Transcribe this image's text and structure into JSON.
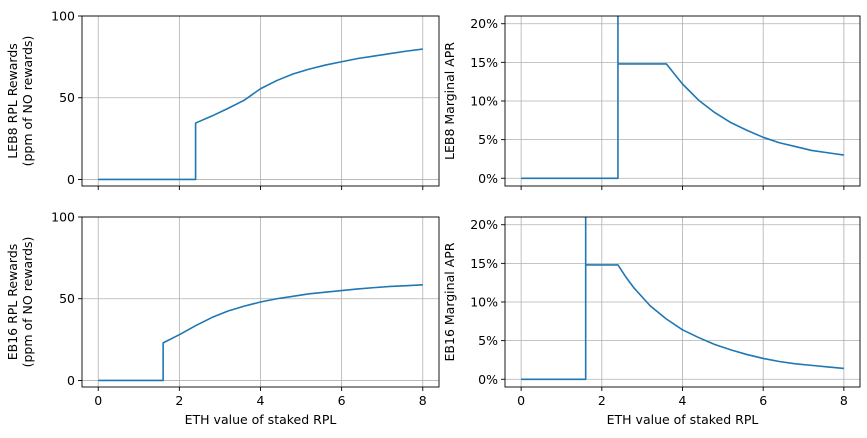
{
  "chart_data": [
    {
      "type": "line",
      "xlabel": "",
      "ylabel_lines": [
        "LEB8 RPL Rewards",
        "(ppm of NO rewards)"
      ],
      "xlim": [
        -0.4,
        8.4
      ],
      "ylim": [
        -4,
        100
      ],
      "xticks": [
        0,
        2,
        4,
        6,
        8
      ],
      "yticks": [
        0,
        50,
        100
      ],
      "show_xticklabels": false,
      "grid": true,
      "line_color": "#1f77b4",
      "x": [
        0,
        2.4,
        2.4,
        2.8,
        3.2,
        3.6,
        4.0,
        4.4,
        4.8,
        5.2,
        5.6,
        6.0,
        6.4,
        6.8,
        7.2,
        7.6,
        8.0
      ],
      "y": [
        0,
        0,
        34.5,
        38.8,
        43.5,
        48.5,
        55.5,
        60.5,
        64.5,
        67.5,
        70.0,
        72.0,
        74.0,
        75.5,
        77.0,
        78.5,
        79.8
      ]
    },
    {
      "type": "line",
      "xlabel": "",
      "ylabel_lines": [
        "LEB8 Marginal APR"
      ],
      "xlim": [
        -0.4,
        8.4
      ],
      "ylim": [
        -0.01,
        0.21
      ],
      "xticks": [
        0,
        2,
        4,
        6,
        8
      ],
      "yticks": [
        0,
        0.05,
        0.1,
        0.15,
        0.2
      ],
      "ytick_labels": [
        "0%",
        "5%",
        "10%",
        "15%",
        "20%"
      ],
      "show_xticklabels": false,
      "grid": true,
      "line_color": "#1f77b4",
      "x": [
        0,
        2.4,
        2.4,
        2.4,
        3.6,
        3.8,
        4.0,
        4.4,
        4.8,
        5.2,
        5.6,
        6.0,
        6.4,
        6.8,
        7.2,
        7.6,
        8.0
      ],
      "y": [
        0,
        0,
        0.25,
        0.148,
        0.148,
        0.135,
        0.122,
        0.101,
        0.085,
        0.072,
        0.062,
        0.053,
        0.046,
        0.041,
        0.036,
        0.033,
        0.03
      ]
    },
    {
      "type": "line",
      "xlabel": "ETH value of staked RPL",
      "ylabel_lines": [
        "EB16 RPL Rewards",
        "(ppm of NO rewards)"
      ],
      "xlim": [
        -0.4,
        8.4
      ],
      "ylim": [
        -4,
        100
      ],
      "xticks": [
        0,
        2,
        4,
        6,
        8
      ],
      "yticks": [
        0,
        50,
        100
      ],
      "show_xticklabels": true,
      "grid": true,
      "line_color": "#1f77b4",
      "x": [
        0,
        1.6,
        1.6,
        2.0,
        2.4,
        2.8,
        3.2,
        3.6,
        4.0,
        4.4,
        4.8,
        5.2,
        5.6,
        6.0,
        6.4,
        6.8,
        7.2,
        7.6,
        8.0
      ],
      "y": [
        0,
        0,
        23,
        28,
        33.5,
        38.5,
        42.5,
        45.5,
        48,
        50,
        51.5,
        53,
        54,
        55,
        56,
        56.8,
        57.5,
        58,
        58.5
      ]
    },
    {
      "type": "line",
      "xlabel": "ETH value of staked RPL",
      "ylabel_lines": [
        "EB16 Marginal APR"
      ],
      "xlim": [
        -0.4,
        8.4
      ],
      "ylim": [
        -0.01,
        0.21
      ],
      "xticks": [
        0,
        2,
        4,
        6,
        8
      ],
      "yticks": [
        0,
        0.05,
        0.1,
        0.15,
        0.2
      ],
      "ytick_labels": [
        "0%",
        "5%",
        "10%",
        "15%",
        "20%"
      ],
      "show_xticklabels": true,
      "grid": true,
      "line_color": "#1f77b4",
      "x": [
        0,
        1.6,
        1.6,
        1.6,
        2.4,
        2.6,
        2.8,
        3.2,
        3.6,
        4.0,
        4.4,
        4.8,
        5.2,
        5.6,
        6.0,
        6.4,
        6.8,
        7.2,
        7.6,
        8.0
      ],
      "y": [
        0,
        0,
        0.25,
        0.148,
        0.148,
        0.132,
        0.118,
        0.095,
        0.078,
        0.064,
        0.054,
        0.045,
        0.038,
        0.032,
        0.027,
        0.023,
        0.02,
        0.018,
        0.016,
        0.014
      ]
    }
  ]
}
